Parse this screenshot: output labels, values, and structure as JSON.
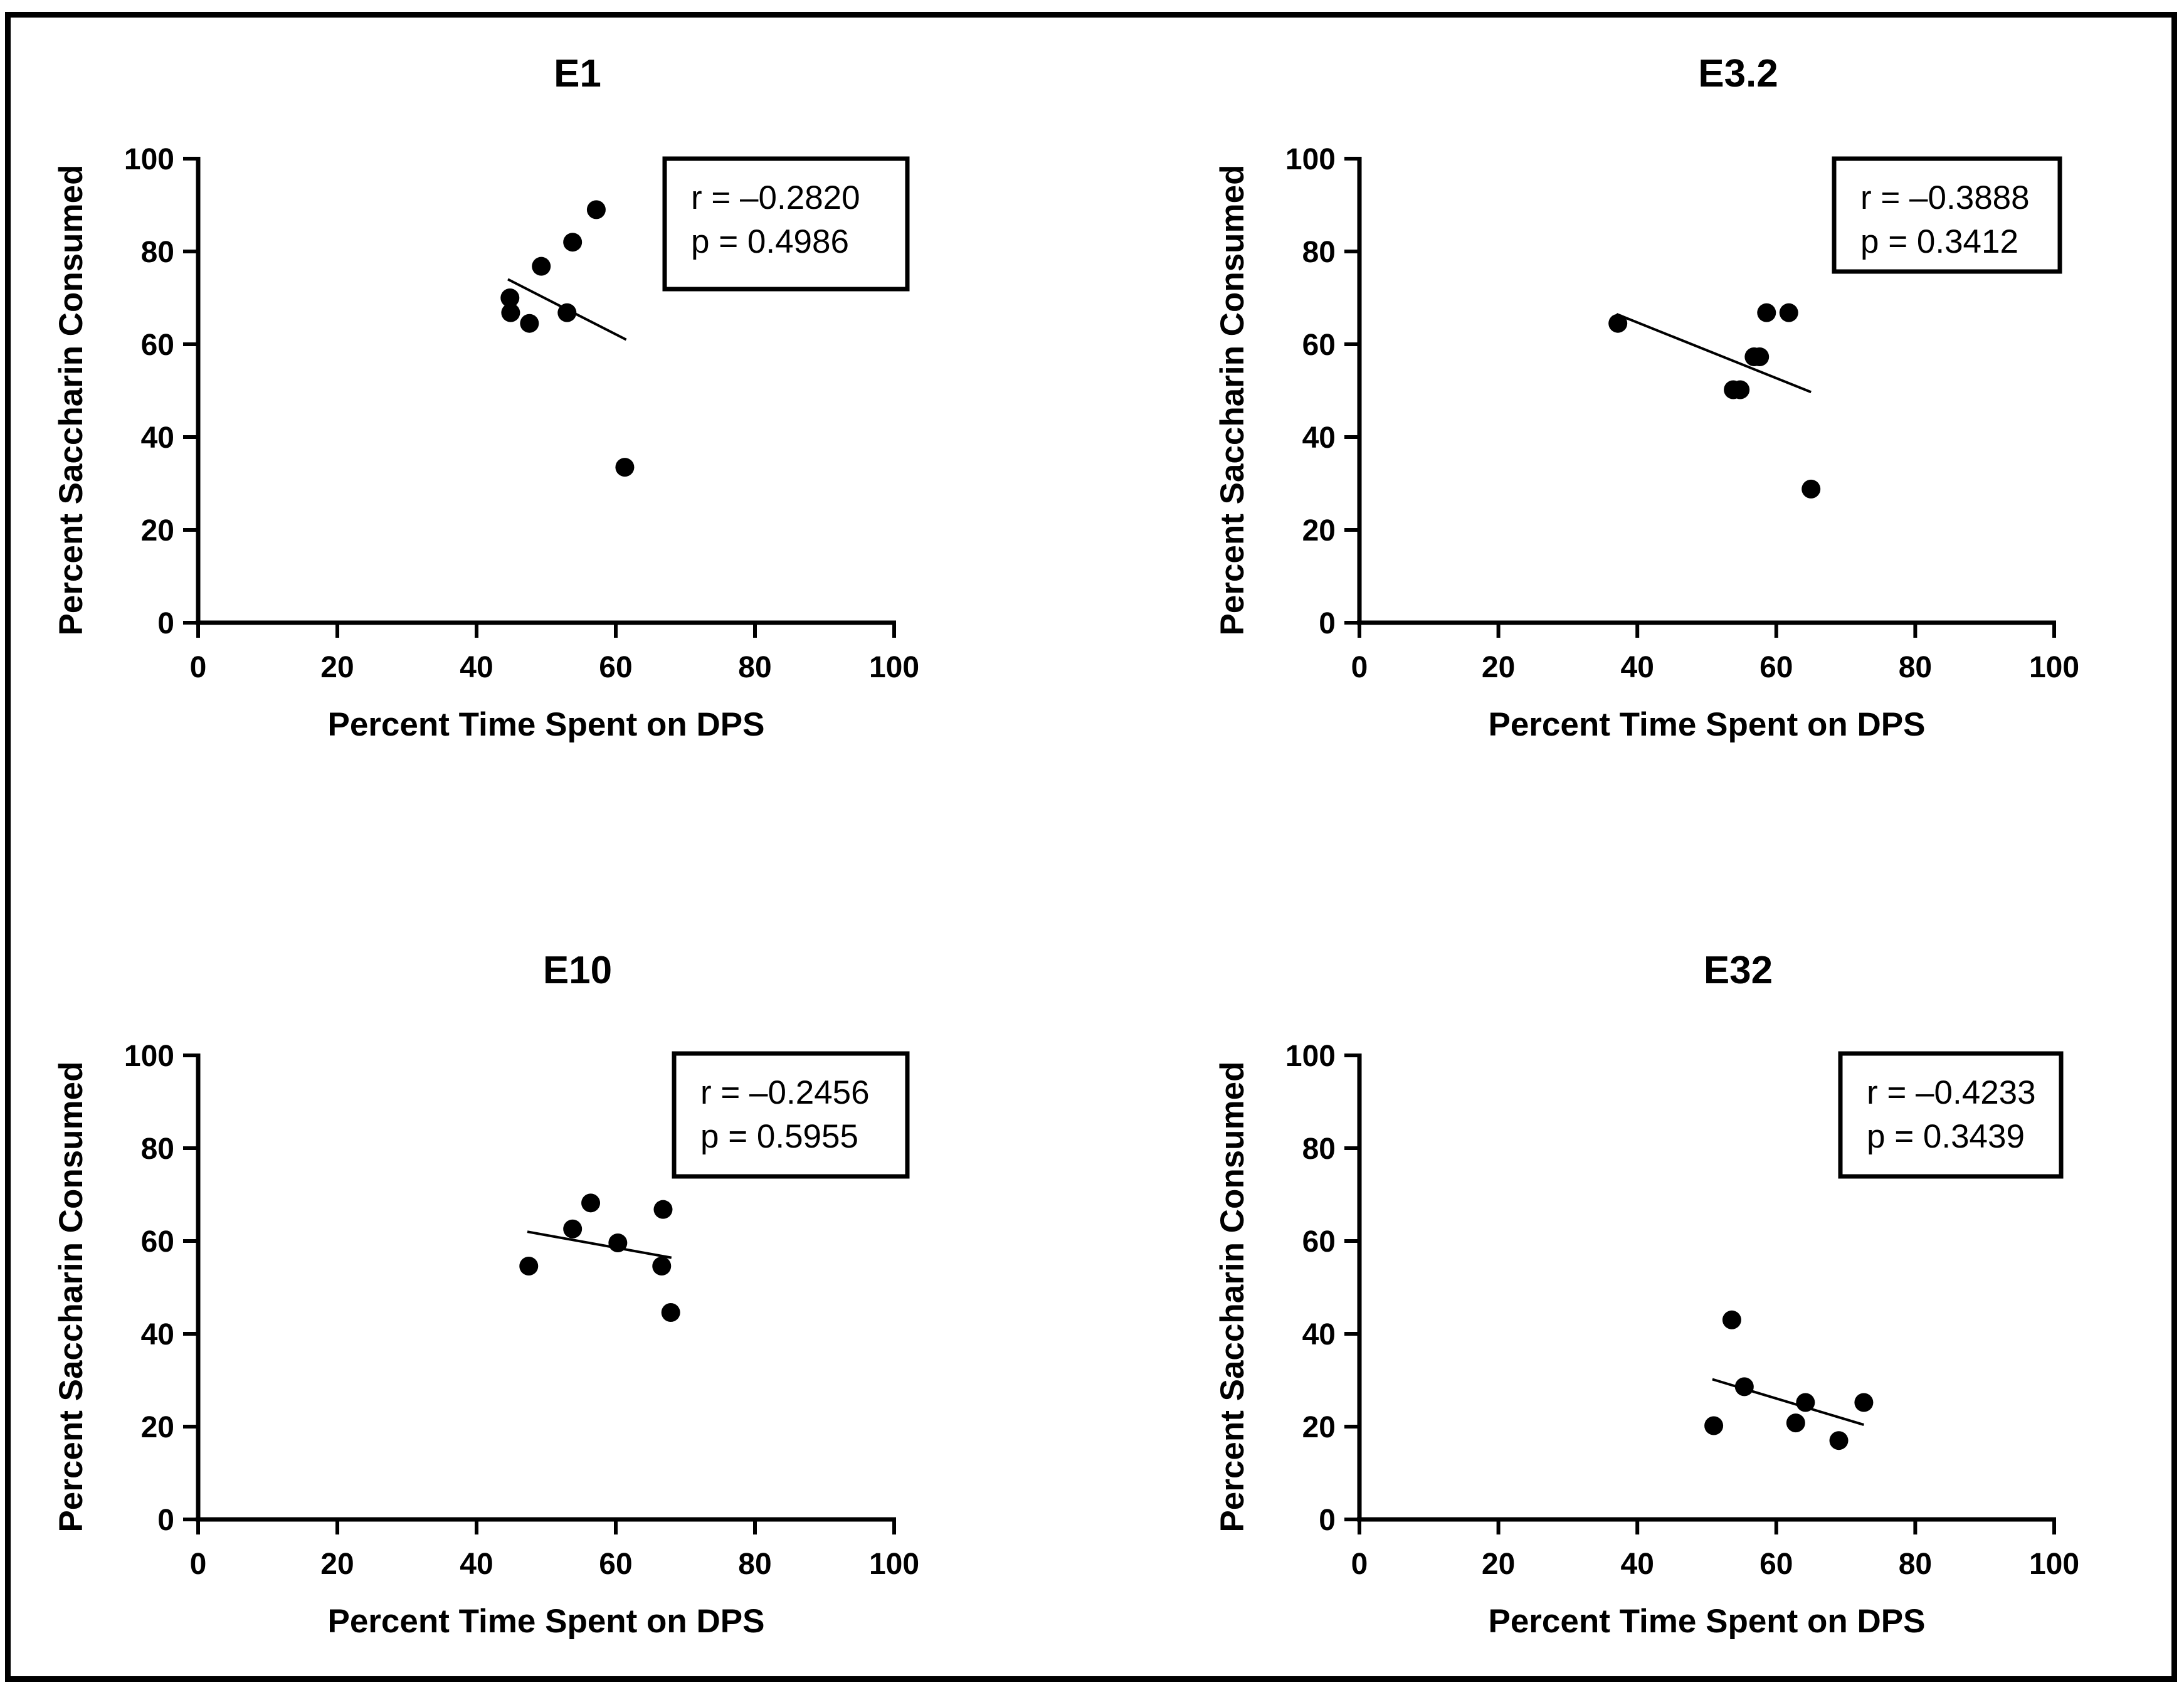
{
  "chart_data": [
    {
      "type": "scatter",
      "title": "E1",
      "xlabel": "Percent Time Spent on DPS",
      "ylabel": "Percent Saccharin Consumed",
      "xlim": [
        0,
        100
      ],
      "ylim": [
        0,
        100
      ],
      "xticks": [
        "0",
        "20",
        "40",
        "60",
        "80",
        "100"
      ],
      "yticks": [
        "0",
        "20",
        "40",
        "60",
        "80",
        "100"
      ],
      "points": [
        {
          "x": 44.8,
          "y": 70.0
        },
        {
          "x": 44.9,
          "y": 66.8
        },
        {
          "x": 47.6,
          "y": 64.5
        },
        {
          "x": 49.3,
          "y": 76.8
        },
        {
          "x": 53.0,
          "y": 66.8
        },
        {
          "x": 53.8,
          "y": 82.0
        },
        {
          "x": 57.2,
          "y": 89.0
        },
        {
          "x": 61.3,
          "y": 33.5
        }
      ],
      "regression": {
        "x": [
          44.5,
          61.5
        ],
        "y": [
          74.0,
          61.0
        ]
      },
      "stats": {
        "r": "r = –0.2820",
        "p": "p = 0.4986"
      },
      "grid": false
    },
    {
      "type": "scatter",
      "title": "E3.2",
      "xlabel": "Percent Time Spent on DPS",
      "ylabel": "Percent Saccharin Consumed",
      "xlim": [
        0,
        100
      ],
      "ylim": [
        0,
        100
      ],
      "xticks": [
        "0",
        "20",
        "40",
        "60",
        "80",
        "100"
      ],
      "yticks": [
        "0",
        "20",
        "40",
        "60",
        "80",
        "100"
      ],
      "points": [
        {
          "x": 37.2,
          "y": 64.5
        },
        {
          "x": 53.8,
          "y": 50.2
        },
        {
          "x": 54.8,
          "y": 50.2
        },
        {
          "x": 56.8,
          "y": 57.3
        },
        {
          "x": 57.6,
          "y": 57.3
        },
        {
          "x": 58.6,
          "y": 66.8
        },
        {
          "x": 61.8,
          "y": 66.8
        },
        {
          "x": 65.0,
          "y": 28.8
        }
      ],
      "regression": {
        "x": [
          37.0,
          65.0
        ],
        "y": [
          66.5,
          49.7
        ]
      },
      "stats": {
        "r": "r = –0.3888",
        "p": "p = 0.3412"
      },
      "grid": false
    },
    {
      "type": "scatter",
      "title": "E10",
      "xlabel": "Percent Time Spent on DPS",
      "ylabel": "Percent Saccharin Consumed",
      "xlim": [
        0,
        100
      ],
      "ylim": [
        0,
        100
      ],
      "xticks": [
        "0",
        "20",
        "40",
        "60",
        "80",
        "100"
      ],
      "yticks": [
        "0",
        "20",
        "40",
        "60",
        "80",
        "100"
      ],
      "points": [
        {
          "x": 47.5,
          "y": 54.6
        },
        {
          "x": 53.8,
          "y": 62.6
        },
        {
          "x": 56.4,
          "y": 68.2
        },
        {
          "x": 60.3,
          "y": 59.6
        },
        {
          "x": 66.6,
          "y": 54.6
        },
        {
          "x": 66.8,
          "y": 66.8
        },
        {
          "x": 67.9,
          "y": 44.6
        }
      ],
      "regression": {
        "x": [
          47.3,
          68.0
        ],
        "y": [
          62.0,
          56.4
        ]
      },
      "stats": {
        "r": "r = –0.2456",
        "p": "p = 0.5955"
      },
      "grid": false
    },
    {
      "type": "scatter",
      "title": "E32",
      "xlabel": "Percent Time Spent on DPS",
      "ylabel": "Percent Saccharin Consumed",
      "xlim": [
        0,
        100
      ],
      "ylim": [
        0,
        100
      ],
      "xticks": [
        "0",
        "20",
        "40",
        "60",
        "80",
        "100"
      ],
      "yticks": [
        "0",
        "20",
        "40",
        "60",
        "80",
        "100"
      ],
      "points": [
        {
          "x": 51.0,
          "y": 20.2
        },
        {
          "x": 53.6,
          "y": 43.0
        },
        {
          "x": 55.4,
          "y": 28.6
        },
        {
          "x": 62.8,
          "y": 20.8
        },
        {
          "x": 64.2,
          "y": 25.2
        },
        {
          "x": 69.0,
          "y": 17.0
        },
        {
          "x": 72.6,
          "y": 25.2
        }
      ],
      "regression": {
        "x": [
          50.8,
          72.6
        ],
        "y": [
          30.2,
          20.4
        ]
      },
      "stats": {
        "r": "r = –0.4233",
        "p": "p = 0.3439"
      },
      "grid": false
    }
  ]
}
